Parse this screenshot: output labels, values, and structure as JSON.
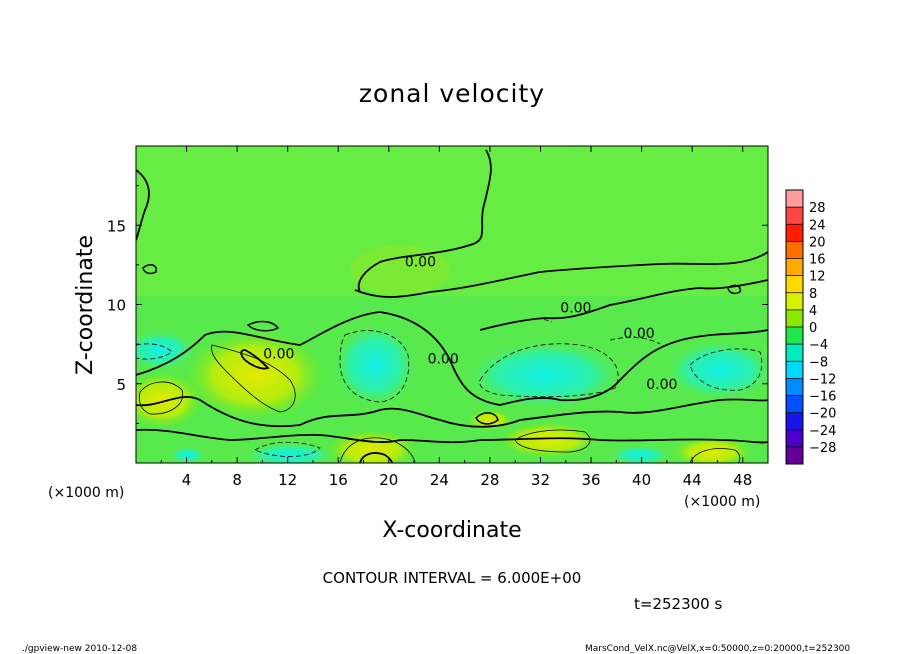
{
  "chart_data": {
    "type": "heatmap",
    "title": "zonal velocity",
    "xlabel": "X-coordinate",
    "ylabel": "Z-coordinate",
    "x_unit": "(×1000 m)",
    "xlim": [
      0,
      50
    ],
    "ylim": [
      0,
      20
    ],
    "x_ticks": [
      4,
      8,
      12,
      16,
      20,
      24,
      28,
      32,
      36,
      40,
      44,
      48
    ],
    "y_ticks": [
      5,
      10,
      15
    ],
    "colorbar": {
      "levels": [
        28,
        24,
        20,
        16,
        12,
        8,
        4,
        0,
        -4,
        -8,
        -12,
        -16,
        -20,
        -24,
        -28
      ],
      "labels": [
        "28",
        "24",
        "20",
        "16",
        "12",
        "8",
        "4",
        "0",
        "−4",
        "−8",
        "−12",
        "−16",
        "−20",
        "−24",
        "−28"
      ],
      "colors": [
        "#ff9c9c",
        "#ff4646",
        "#ff1e00",
        "#ff6e00",
        "#ffaa00",
        "#ffd800",
        "#d8f000",
        "#8ce800",
        "#1ee84a",
        "#00eebe",
        "#00d8ff",
        "#008cff",
        "#0050ff",
        "#1a14e8",
        "#4a00c8",
        "#640096"
      ]
    },
    "contour_labels": [
      {
        "text": "0.00",
        "x": 22.5,
        "z": 12.7
      },
      {
        "text": "0.00",
        "x": 34.8,
        "z": 9.8
      },
      {
        "text": "0.00",
        "x": 39.8,
        "z": 8.2
      },
      {
        "text": "0.00",
        "x": 11.3,
        "z": 6.9
      },
      {
        "text": "0.00",
        "x": 24.3,
        "z": 6.6
      },
      {
        "text": "0.00",
        "x": 41.6,
        "z": 5.0
      }
    ]
  },
  "contour_interval": "CONTOUR INTERVAL = 6.000E+00",
  "time_label": "t=252300 s",
  "footer_left": "./gpview-new   2010-12-08",
  "footer_right": "MarsCond_VelX.nc@VelX,x=0:50000,z=0:20000,t=252300",
  "x_unit_left": "(×1000 m)",
  "x_unit_right": "(×1000 m)"
}
